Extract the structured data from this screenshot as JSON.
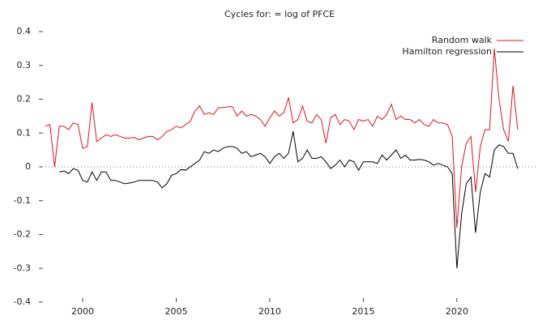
{
  "chart_data": {
    "type": "line",
    "title": "Cycles for:  = log of PFCE",
    "x": [
      1998.0,
      1998.25,
      1998.5,
      1998.75,
      1999.0,
      1999.25,
      1999.5,
      1999.75,
      2000.0,
      2000.25,
      2000.5,
      2000.75,
      2001.0,
      2001.25,
      2001.5,
      2001.75,
      2002.0,
      2002.25,
      2002.5,
      2002.75,
      2003.0,
      2003.25,
      2003.5,
      2003.75,
      2004.0,
      2004.25,
      2004.5,
      2004.75,
      2005.0,
      2005.25,
      2005.5,
      2005.75,
      2006.0,
      2006.25,
      2006.5,
      2006.75,
      2007.0,
      2007.25,
      2007.5,
      2007.75,
      2008.0,
      2008.25,
      2008.5,
      2008.75,
      2009.0,
      2009.25,
      2009.5,
      2009.75,
      2010.0,
      2010.25,
      2010.5,
      2010.75,
      2011.0,
      2011.25,
      2011.5,
      2011.75,
      2012.0,
      2012.25,
      2012.5,
      2012.75,
      2013.0,
      2013.25,
      2013.5,
      2013.75,
      2014.0,
      2014.25,
      2014.5,
      2014.75,
      2015.0,
      2015.25,
      2015.5,
      2015.75,
      2016.0,
      2016.25,
      2016.5,
      2016.75,
      2017.0,
      2017.25,
      2017.5,
      2017.75,
      2018.0,
      2018.25,
      2018.5,
      2018.75,
      2019.0,
      2019.25,
      2019.5,
      2019.75,
      2020.0,
      2020.25,
      2020.5,
      2020.75,
      2021.0,
      2021.25,
      2021.5,
      2021.75,
      2022.0,
      2022.25,
      2022.5,
      2022.75,
      2023.0,
      2023.25
    ],
    "series": [
      {
        "name": "Random walk",
        "color": "#e0141e",
        "values": [
          0.12,
          0.125,
          0.0,
          0.12,
          0.12,
          0.11,
          0.13,
          0.125,
          0.055,
          0.06,
          0.19,
          0.075,
          0.085,
          0.095,
          0.09,
          0.095,
          0.09,
          0.085,
          0.085,
          0.087,
          0.08,
          0.085,
          0.09,
          0.09,
          0.08,
          0.09,
          0.105,
          0.11,
          0.12,
          0.115,
          0.125,
          0.135,
          0.165,
          0.18,
          0.155,
          0.16,
          0.155,
          0.175,
          0.175,
          0.178,
          0.178,
          0.15,
          0.165,
          0.15,
          0.155,
          0.15,
          0.14,
          0.12,
          0.145,
          0.165,
          0.15,
          0.16,
          0.205,
          0.13,
          0.14,
          0.18,
          0.135,
          0.13,
          0.155,
          0.14,
          0.07,
          0.145,
          0.155,
          0.125,
          0.14,
          0.135,
          0.11,
          0.14,
          0.135,
          0.14,
          0.12,
          0.15,
          0.14,
          0.155,
          0.185,
          0.14,
          0.15,
          0.14,
          0.14,
          0.13,
          0.14,
          0.125,
          0.12,
          0.14,
          0.13,
          0.13,
          0.125,
          0.09,
          -0.18,
          0.0,
          0.07,
          0.09,
          -0.075,
          0.06,
          0.11,
          0.11,
          0.35,
          0.2,
          0.11,
          0.075,
          0.24,
          0.11
        ]
      },
      {
        "name": "Hamilton regression",
        "color": "#000000",
        "values": [
          null,
          null,
          null,
          -0.015,
          -0.012,
          -0.02,
          -0.005,
          -0.01,
          -0.04,
          -0.045,
          -0.015,
          -0.04,
          -0.015,
          -0.015,
          -0.04,
          -0.04,
          -0.045,
          -0.05,
          -0.048,
          -0.045,
          -0.04,
          -0.04,
          -0.04,
          -0.04,
          -0.045,
          -0.062,
          -0.05,
          -0.025,
          -0.02,
          -0.008,
          -0.01,
          0.0,
          0.01,
          0.02,
          0.045,
          0.04,
          0.05,
          0.045,
          0.055,
          0.06,
          0.06,
          0.055,
          0.04,
          0.045,
          0.03,
          0.035,
          0.04,
          0.03,
          0.01,
          0.03,
          0.04,
          0.025,
          0.04,
          0.105,
          0.015,
          0.025,
          0.05,
          0.025,
          0.025,
          0.03,
          0.015,
          -0.005,
          0.005,
          0.02,
          0.0,
          0.02,
          0.015,
          -0.01,
          0.015,
          0.015,
          0.015,
          0.01,
          0.035,
          0.02,
          0.035,
          0.05,
          0.025,
          0.035,
          0.02,
          0.02,
          0.022,
          0.02,
          0.015,
          0.005,
          0.01,
          0.005,
          0.0,
          -0.02,
          -0.3,
          -0.14,
          -0.05,
          -0.03,
          -0.195,
          -0.075,
          -0.02,
          -0.03,
          0.05,
          0.065,
          0.06,
          0.04,
          0.04,
          -0.005
        ]
      }
    ],
    "xlim": [
      1997.66,
      2024.25
    ],
    "xticks": [
      2000,
      2005,
      2010,
      2015,
      2020
    ],
    "ylim": [
      -0.4,
      0.4
    ],
    "yticks": [
      -0.4,
      -0.3,
      -0.2,
      -0.1,
      0,
      0.1,
      0.2,
      0.3,
      0.4
    ],
    "zero_line": true,
    "legend": "top-right"
  }
}
